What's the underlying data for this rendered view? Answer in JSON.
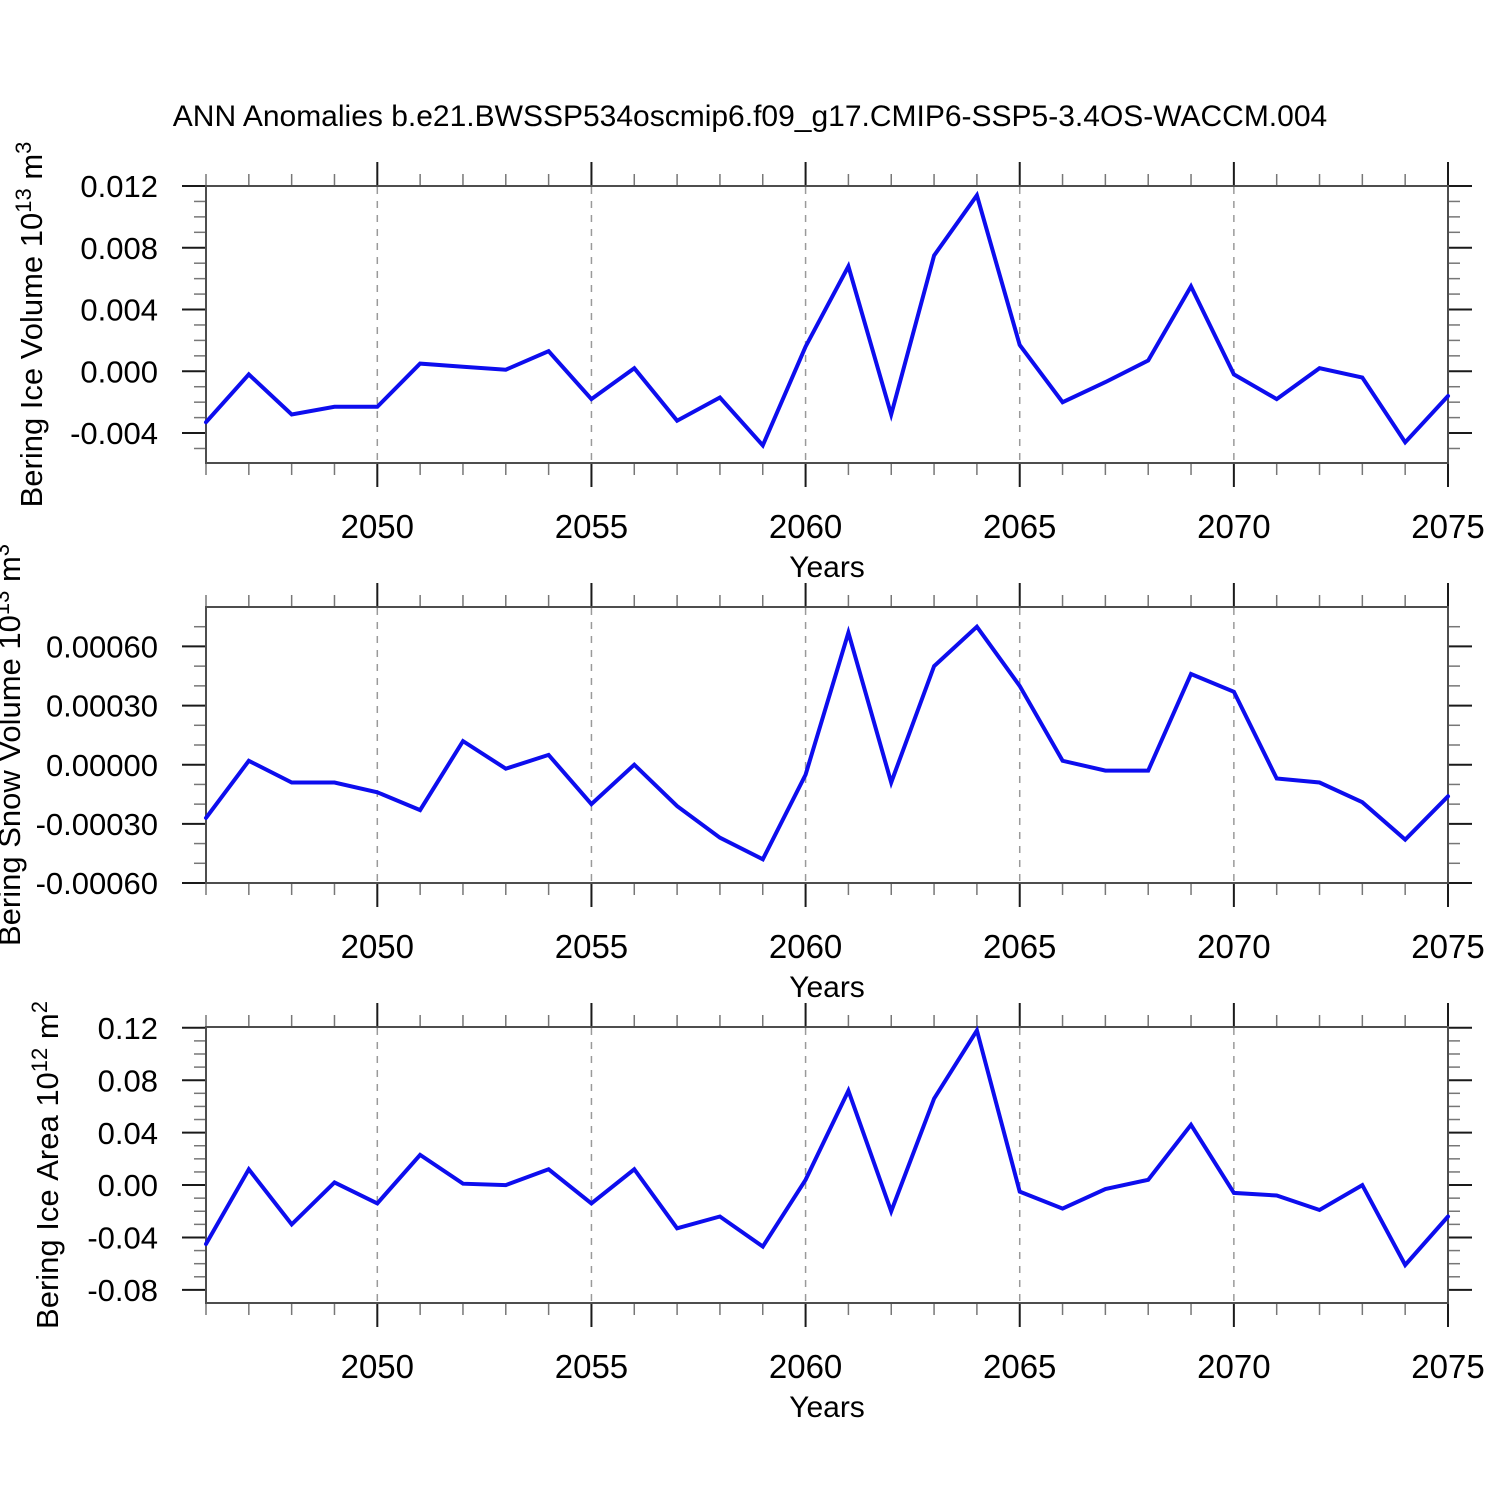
{
  "title": "ANN Anomalies b.e21.BWSSP534oscmip6.f09_g17.CMIP6-SSP5-3.4OS-WACCM.004",
  "colors": {
    "line": "#0d0dee",
    "grid": "#9a9a9a",
    "frame": "#4d4d4d",
    "tick_major": "#1a1a1a",
    "tick_minor": "#777777",
    "text": "#000000"
  },
  "x_axis": {
    "label": "Years",
    "lim": [
      2046,
      2075
    ],
    "major_ticks": [
      2050,
      2055,
      2060,
      2065,
      2070,
      2075
    ],
    "major_labels": [
      "2050",
      "2055",
      "2060",
      "2065",
      "2070",
      "2075"
    ],
    "minor_step": 1
  },
  "chart_data": [
    {
      "type": "line",
      "name": "bering-ice-volume",
      "ylabel": {
        "main": "Bering Ice Volume 10",
        "exp": "13",
        "unit": " m",
        "unit_exp": "3"
      },
      "ylim": [
        -0.00594,
        0.012
      ],
      "y_major_ticks": [
        {
          "v": 0.012,
          "label": "0.012"
        },
        {
          "v": 0.008,
          "label": "0.008"
        },
        {
          "v": 0.004,
          "label": "0.004"
        },
        {
          "v": 0.0,
          "label": "0.000"
        },
        {
          "v": -0.004,
          "label": "-0.004"
        }
      ],
      "y_minor_step": 0.001,
      "x": [
        2046,
        2047,
        2048,
        2049,
        2050,
        2051,
        2052,
        2053,
        2054,
        2055,
        2056,
        2057,
        2058,
        2059,
        2060,
        2061,
        2062,
        2063,
        2064,
        2065,
        2066,
        2067,
        2068,
        2069,
        2070,
        2071,
        2072,
        2073,
        2074,
        2075
      ],
      "values": [
        -0.0033,
        -0.0002,
        -0.0028,
        -0.0023,
        -0.0023,
        0.0005,
        0.0003,
        0.0001,
        0.0013,
        -0.0018,
        0.0002,
        -0.0032,
        -0.0017,
        -0.0048,
        0.0016,
        0.0068,
        -0.0028,
        0.0075,
        0.0114,
        0.0017,
        -0.002,
        -0.0007,
        0.0007,
        0.0055,
        -0.0002,
        -0.0018,
        0.0002,
        -0.0004,
        -0.0046,
        -0.0016
      ]
    },
    {
      "type": "line",
      "name": "bering-snow-volume",
      "ylabel": {
        "main": "Bering Snow Volume 10",
        "exp": "13",
        "unit": " m",
        "unit_exp": "3"
      },
      "ylabel_clipped": true,
      "ylim": [
        -0.0006,
        0.0008
      ],
      "y_major_ticks": [
        {
          "v": 0.0006,
          "label": "0.00060"
        },
        {
          "v": 0.0003,
          "label": "0.00030"
        },
        {
          "v": 0.0,
          "label": "0.00000"
        },
        {
          "v": -0.0003,
          "label": "-0.00030"
        },
        {
          "v": -0.0006,
          "label": "-0.00060"
        }
      ],
      "y_minor_step": 0.0001,
      "x": [
        2046,
        2047,
        2048,
        2049,
        2050,
        2051,
        2052,
        2053,
        2054,
        2055,
        2056,
        2057,
        2058,
        2059,
        2060,
        2061,
        2062,
        2063,
        2064,
        2065,
        2066,
        2067,
        2068,
        2069,
        2070,
        2071,
        2072,
        2073,
        2074,
        2075
      ],
      "values": [
        -0.00027,
        2e-05,
        -9e-05,
        -9e-05,
        -0.00014,
        -0.00023,
        0.00012,
        -2e-05,
        5e-05,
        -0.0002,
        0.0,
        -0.00021,
        -0.00037,
        -0.00048,
        -5e-05,
        0.00067,
        -9e-05,
        0.0005,
        0.0007,
        0.0004,
        2e-05,
        -3e-05,
        -3e-05,
        0.00046,
        0.00037,
        -7e-05,
        -9e-05,
        -0.00019,
        -0.00038,
        -0.00016
      ]
    },
    {
      "type": "line",
      "name": "bering-ice-area",
      "ylabel": {
        "main": "Bering Ice Area 10",
        "exp": "12",
        "unit": " m",
        "unit_exp": "2"
      },
      "ylim": [
        -0.09,
        0.1206
      ],
      "y_major_ticks": [
        {
          "v": 0.12,
          "label": "0.12"
        },
        {
          "v": 0.08,
          "label": "0.08"
        },
        {
          "v": 0.04,
          "label": "0.04"
        },
        {
          "v": 0.0,
          "label": "0.00"
        },
        {
          "v": -0.04,
          "label": "-0.04"
        },
        {
          "v": -0.08,
          "label": "-0.08"
        }
      ],
      "y_minor_step": 0.01,
      "x": [
        2046,
        2047,
        2048,
        2049,
        2050,
        2051,
        2052,
        2053,
        2054,
        2055,
        2056,
        2057,
        2058,
        2059,
        2060,
        2061,
        2062,
        2063,
        2064,
        2065,
        2066,
        2067,
        2068,
        2069,
        2070,
        2071,
        2072,
        2073,
        2074,
        2075
      ],
      "values": [
        -0.045,
        0.012,
        -0.03,
        0.002,
        -0.014,
        0.023,
        0.001,
        0.0,
        0.012,
        -0.014,
        0.012,
        -0.033,
        -0.024,
        -0.047,
        0.004,
        0.072,
        -0.02,
        0.066,
        0.118,
        -0.005,
        -0.018,
        -0.003,
        0.004,
        0.046,
        -0.006,
        -0.008,
        -0.019,
        0.0,
        -0.061,
        -0.024
      ]
    }
  ]
}
